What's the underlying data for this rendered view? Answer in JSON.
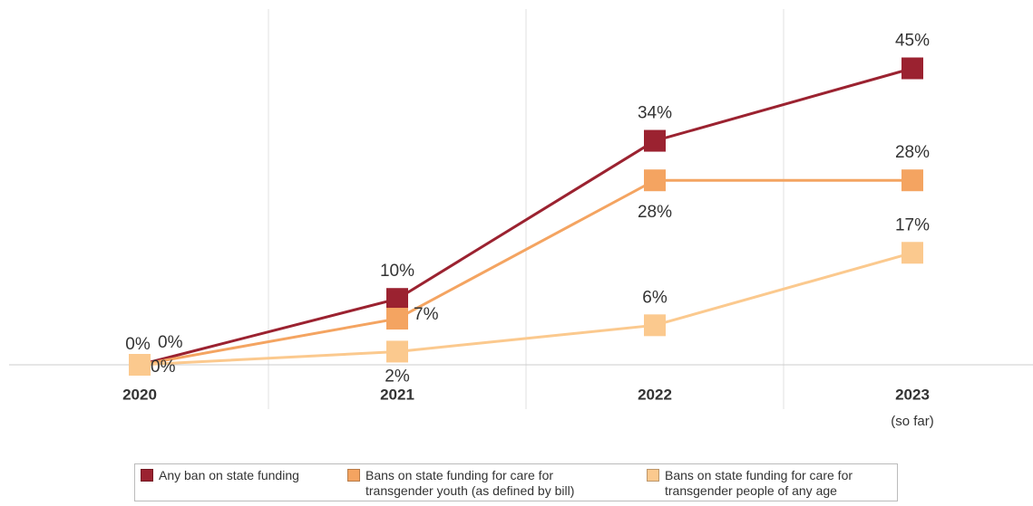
{
  "chart_data": {
    "type": "line",
    "categories": [
      "2020",
      "2021",
      "2022",
      "2023"
    ],
    "x_annotation": "(so far)",
    "ylim": [
      0,
      54
    ],
    "series": [
      {
        "name": "Any ban on state funding",
        "color": "#9b2230",
        "values": [
          0,
          10,
          34,
          45
        ],
        "value_labels": [
          "0%",
          "10%",
          "34%",
          "45%"
        ]
      },
      {
        "name": "Bans on state funding for care for transgender youth (as defined by bill)",
        "color": "#f4a461",
        "values": [
          0,
          7,
          28,
          28
        ],
        "value_labels": [
          "0%",
          "7%",
          "28%",
          "28%"
        ]
      },
      {
        "name": "Bans on state funding for care for transgender people of any age",
        "color": "#fbc98e",
        "values": [
          0,
          2,
          6,
          17
        ],
        "value_labels": [
          "0%",
          "2%",
          "6%",
          "17%"
        ]
      }
    ]
  }
}
